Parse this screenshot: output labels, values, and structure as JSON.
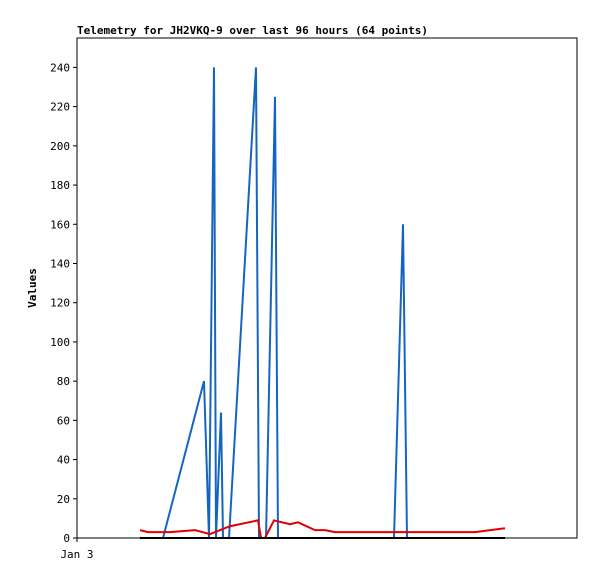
{
  "chart_data": {
    "type": "line",
    "title": "Telemetry for JH2VKQ-9 over last 96 hours (64 points)",
    "y_label": "Values",
    "xlim": [
      0,
      100
    ],
    "xticks": [
      {
        "value": 0,
        "label": "Jan 3"
      }
    ],
    "ylim": [
      0,
      255
    ],
    "yticks": [
      0,
      20,
      40,
      60,
      80,
      100,
      120,
      140,
      160,
      180,
      200,
      220,
      240
    ],
    "series": [
      {
        "color": "#1565c0",
        "x": [
          17.2,
          25.4,
          26.4,
          27.4,
          27.8,
          28.8,
          29.2,
          30.4,
          35.8,
          36.4,
          37.8,
          39.6,
          40.2,
          63.4,
          65.2,
          66,
          85.6
        ],
        "values": [
          0,
          80,
          0,
          240,
          0,
          64,
          0,
          0,
          240,
          0,
          0,
          225,
          0,
          0,
          160,
          0,
          0
        ]
      },
      {
        "color": "#e00000",
        "x": [
          12.6,
          14.2,
          18.6,
          23.6,
          26.6,
          30.6,
          36.2,
          36.8,
          37.6,
          39.4,
          42.6,
          44.2,
          47.6,
          49.6,
          51.6,
          79.6,
          85.6
        ],
        "values": [
          4,
          3,
          3,
          4,
          2,
          6,
          9,
          0,
          0,
          9,
          7,
          8,
          4,
          4,
          3,
          3,
          5
        ]
      },
      {
        "color": "#000000",
        "x": [
          12.6,
          85.6
        ],
        "values": [
          0,
          0
        ]
      }
    ]
  }
}
